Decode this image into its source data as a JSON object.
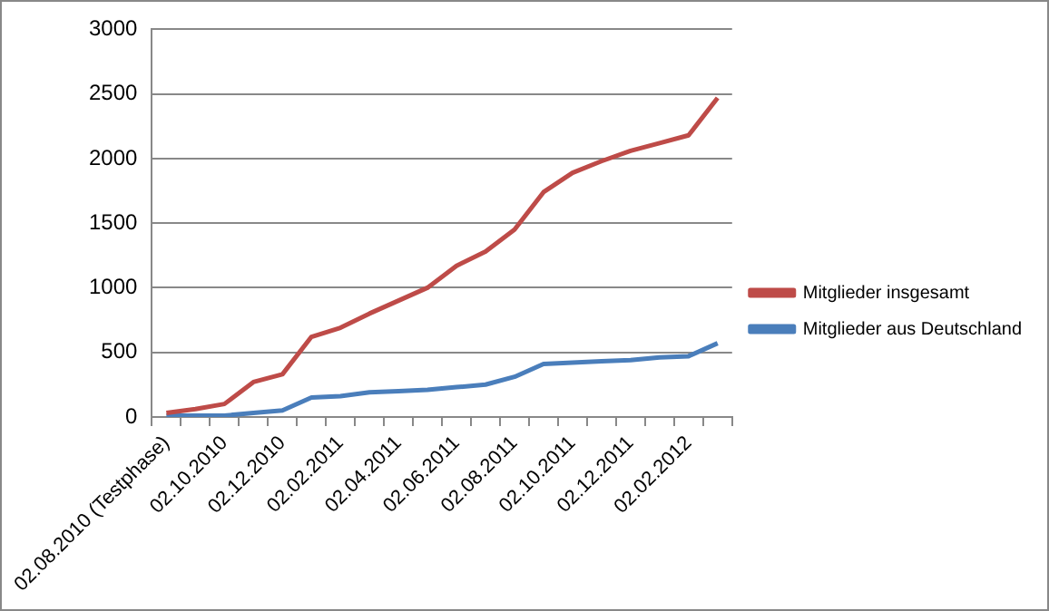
{
  "chart_data": {
    "type": "line",
    "categories": [
      "02.08.2010 (Testphase)",
      null,
      "02.10.2010",
      null,
      "02.12.2010",
      null,
      "02.02.2011",
      null,
      "02.04.2011",
      null,
      "02.06.2011",
      null,
      "02.08.2011",
      null,
      "02.10.2011",
      null,
      "02.12.2011",
      null,
      "02.02.2012",
      null
    ],
    "series": [
      {
        "name": "Mitglieder insgesamt",
        "color": "#be4b48",
        "values": [
          30,
          60,
          100,
          270,
          330,
          620,
          690,
          800,
          900,
          1000,
          1170,
          1280,
          1450,
          1740,
          1890,
          1980,
          2060,
          2120,
          2180,
          2470
        ]
      },
      {
        "name": "Mitglieder aus Deutschland",
        "color": "#4a7ebb",
        "values": [
          10,
          10,
          10,
          30,
          50,
          150,
          160,
          190,
          200,
          210,
          230,
          250,
          310,
          410,
          420,
          430,
          440,
          460,
          470,
          570
        ]
      }
    ],
    "ylim": [
      0,
      3000
    ],
    "yticks": [
      0,
      500,
      1000,
      1500,
      2000,
      2500,
      3000
    ],
    "grid": "y",
    "legend": "right",
    "marker": "none",
    "line_style": "solid"
  }
}
